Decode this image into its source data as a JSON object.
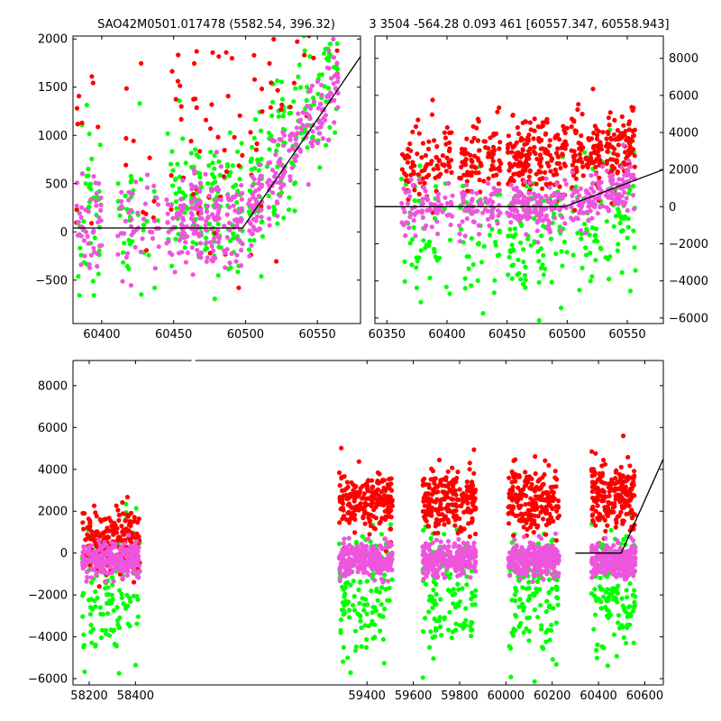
{
  "title": {
    "left": "SAO42M0501.017478 (5582.54, 396.32)",
    "right": "3 3504 -564.28 0.093 461 [60557.347, 60558.943]"
  },
  "colors": {
    "green": "#00ff00",
    "red": "#ff0000",
    "violet": "#ee82ee",
    "magenta": "#ee55dd",
    "model_line": "#000000",
    "frame": "#000000"
  },
  "chart_data": [
    {
      "id": "top-left",
      "type": "scatter",
      "title": "",
      "xlabel": "",
      "ylabel": "",
      "xlim": [
        60380,
        60580
      ],
      "ylim": [
        -950,
        2030
      ],
      "xticks": [
        60400,
        60450,
        60500,
        60550
      ],
      "yticks": [
        -500,
        0,
        500,
        1000,
        1500,
        2000
      ],
      "ytick_side": "left",
      "clusters": [
        {
          "x": [
            60382,
            60400
          ],
          "seed": 11
        },
        {
          "x": [
            60410,
            60440
          ],
          "seed": 12
        },
        {
          "x": [
            60445,
            60460
          ],
          "seed": 13
        },
        {
          "x": [
            60462,
            60470
          ],
          "seed": 14
        },
        {
          "x": [
            60472,
            60483
          ],
          "seed": 15
        },
        {
          "x": [
            60485,
            60498
          ],
          "seed": 16
        },
        {
          "x": [
            60502,
            60512
          ],
          "seed": 17
        },
        {
          "x": [
            60515,
            60528
          ],
          "seed": 18
        },
        {
          "x": [
            60530,
            60548
          ],
          "seed": 19
        },
        {
          "x": [
            60550,
            60565
          ],
          "seed": 20
        }
      ],
      "series": [
        {
          "color": "green",
          "center": 250,
          "spread": 900,
          "n": 40
        },
        {
          "color": "red",
          "center": 900,
          "spread": 1800,
          "n": 12
        },
        {
          "color": "magenta",
          "center": 100,
          "spread": 550,
          "n": 45
        }
      ],
      "trend_center_boost": {
        "start": 60500,
        "slope": 22
      },
      "model_line": {
        "x": [
          60380,
          60498,
          60600
        ],
        "y": [
          40,
          40,
          2250
        ]
      }
    },
    {
      "id": "top-right",
      "type": "scatter",
      "title": "",
      "xlabel": "",
      "ylabel": "",
      "xlim": [
        60340,
        60580
      ],
      "ylim": [
        -6300,
        9200
      ],
      "xticks": [
        60350,
        60400,
        60450,
        60500,
        60550
      ],
      "yticks": [
        -6000,
        -4000,
        -2000,
        0,
        2000,
        4000,
        6000,
        8000
      ],
      "ytick_side": "right",
      "clusters": [
        {
          "x": [
            60362,
            60405
          ],
          "seed": 31
        },
        {
          "x": [
            60410,
            60445
          ],
          "seed": 32
        },
        {
          "x": [
            60450,
            60470
          ],
          "seed": 33
        },
        {
          "x": [
            60472,
            60500
          ],
          "seed": 34
        },
        {
          "x": [
            60503,
            60530
          ],
          "seed": 35
        },
        {
          "x": [
            60532,
            60557
          ],
          "seed": 36
        }
      ],
      "series": [
        {
          "color": "green",
          "center": -1200,
          "spread": 4200,
          "n": 45
        },
        {
          "color": "red",
          "center": 2600,
          "spread": 2400,
          "n": 90
        },
        {
          "color": "magenta",
          "center": 0,
          "spread": 1500,
          "n": 70
        }
      ],
      "trend_center_boost": {
        "start": 60500,
        "slope": 20
      },
      "model_line": {
        "x": [
          60340,
          60498,
          60580
        ],
        "y": [
          0,
          0,
          2000
        ]
      }
    },
    {
      "id": "bottom",
      "type": "scatter",
      "title": "",
      "xlabel": "",
      "ylabel": "",
      "xlim": [
        58130,
        60680
      ],
      "ylim": [
        -6300,
        9200
      ],
      "xticks": [
        58200,
        58400,
        59400,
        59600,
        59800,
        60000,
        60200,
        60400,
        60600
      ],
      "yticks": [
        -6000,
        -4000,
        -2000,
        0,
        2000,
        4000,
        6000,
        8000
      ],
      "ytick_side": "left",
      "axis_break": 58650,
      "clusters": [
        {
          "x": [
            58170,
            58420
          ],
          "seed": 51,
          "red_center": 700,
          "red_spread": 1800
        },
        {
          "x": [
            59280,
            59510
          ],
          "seed": 52,
          "red_center": 2400,
          "red_spread": 1700
        },
        {
          "x": [
            59640,
            59870
          ],
          "seed": 53,
          "red_center": 2500,
          "red_spread": 1700
        },
        {
          "x": [
            60010,
            60230
          ],
          "seed": 54,
          "red_center": 2500,
          "red_spread": 1700
        },
        {
          "x": [
            60370,
            60560
          ],
          "seed": 55,
          "red_center": 2700,
          "red_spread": 1900
        }
      ],
      "series": [
        {
          "color": "green",
          "center": -2000,
          "spread": 3500,
          "n": 120
        },
        {
          "color": "red",
          "center": 2400,
          "spread": 1700,
          "n": 200
        },
        {
          "color": "magenta",
          "center": -300,
          "spread": 900,
          "n": 260
        }
      ],
      "model_line": {
        "x": [
          60300,
          60498,
          60680
        ],
        "y": [
          0,
          0,
          4500
        ]
      }
    }
  ]
}
